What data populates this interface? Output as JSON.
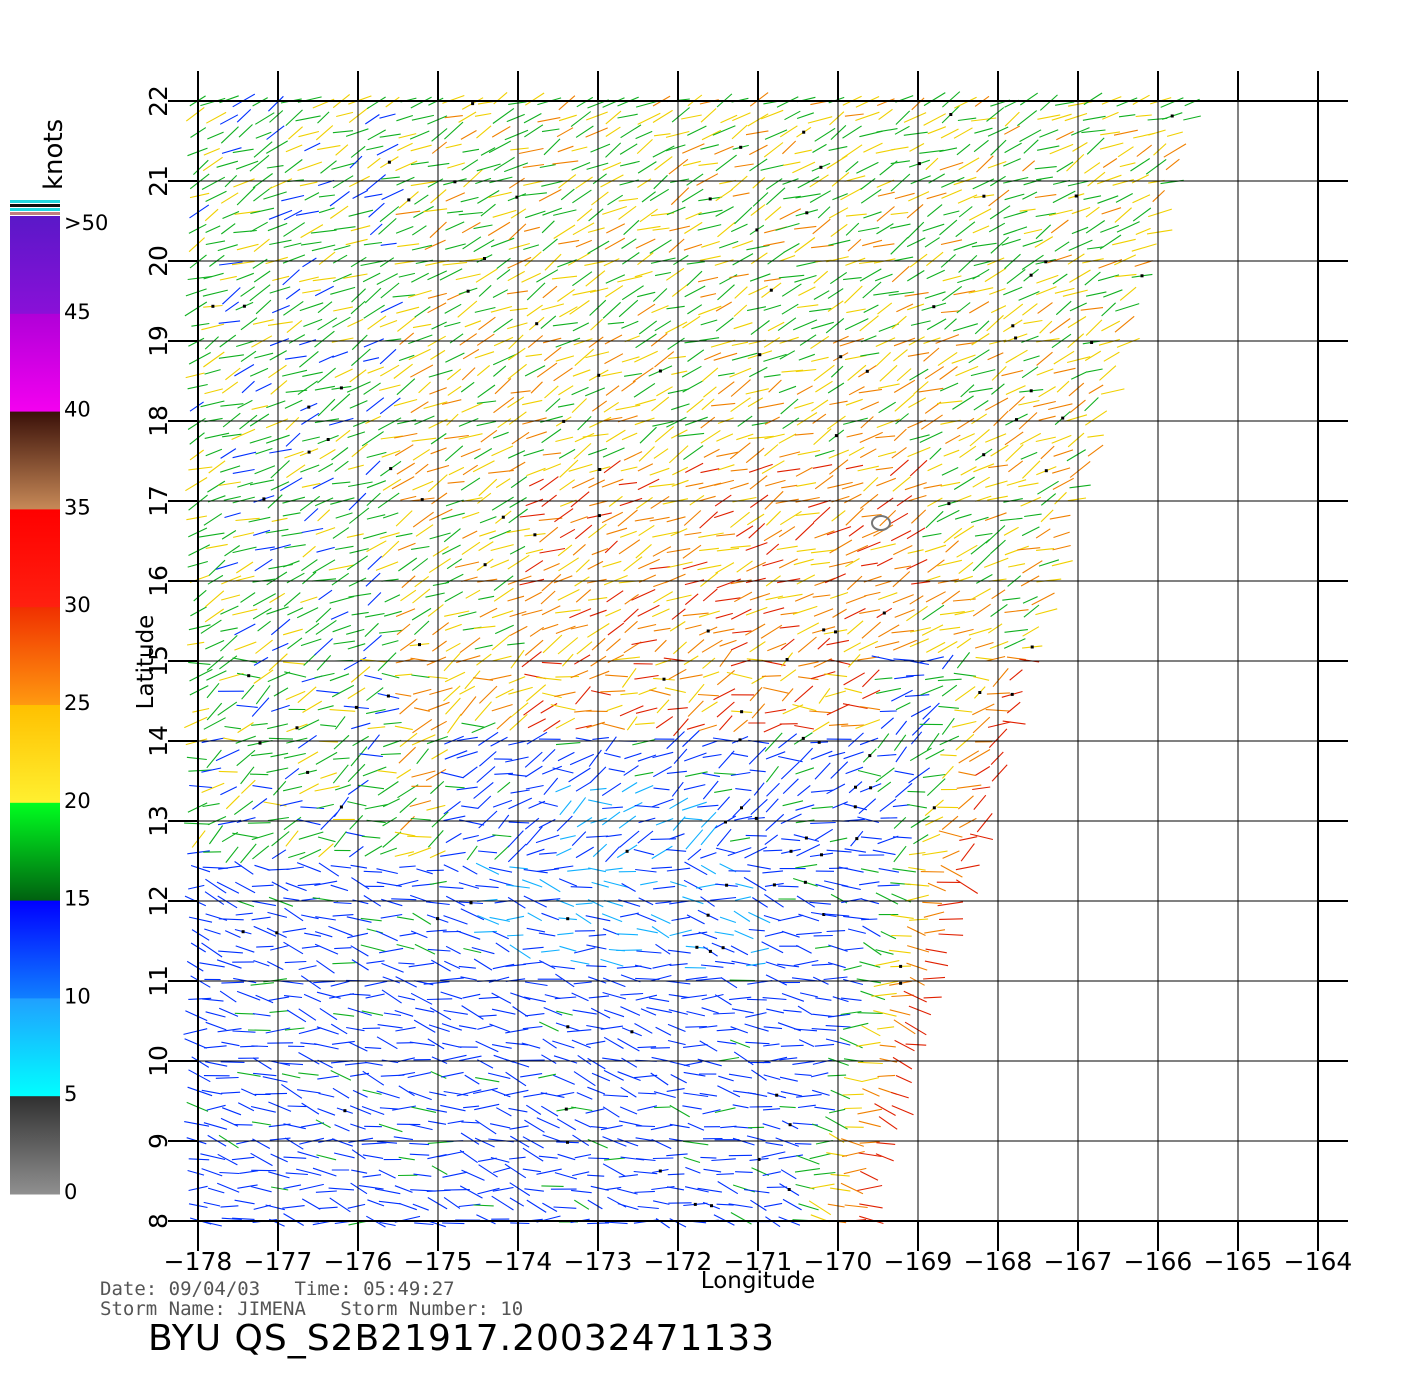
{
  "legend": {
    "unit_label": "knots",
    "labels": [
      ">50",
      "45",
      "40",
      "35",
      "30",
      "25",
      "20",
      "15",
      "10",
      "5",
      "0"
    ],
    "bands": [
      {
        "label": ">50",
        "colors": [
          "#5a18c8",
          "#8a10d8"
        ]
      },
      {
        "label": "45",
        "colors": [
          "#b000d8",
          "#f400f0"
        ]
      },
      {
        "label": "40",
        "colors": [
          "#3a1008",
          "#c88a58"
        ]
      },
      {
        "label": "35",
        "colors": [
          "#ff0000",
          "#ff2010"
        ]
      },
      {
        "label": "30",
        "colors": [
          "#f03000",
          "#ff9a10"
        ]
      },
      {
        "label": "25",
        "colors": [
          "#ffc000",
          "#fff030"
        ]
      },
      {
        "label": "20",
        "colors": [
          "#00ff20",
          "#006010"
        ]
      },
      {
        "label": "15",
        "colors": [
          "#0000ff",
          "#1080ff"
        ]
      },
      {
        "label": "10",
        "colors": [
          "#20a0ff",
          "#00ffff"
        ]
      },
      {
        "label": "5",
        "colors": [
          "#303030",
          "#909090"
        ]
      }
    ],
    "top_stripes": [
      "#20d8e0",
      "#101010",
      "#20d8e0",
      "#c08080"
    ]
  },
  "map": {
    "x_axis_label": "Longitude",
    "y_axis_label": "Latitude",
    "lon_ticks": [
      "−178",
      "−177",
      "−176",
      "−175",
      "−174",
      "−173",
      "−172",
      "−171",
      "−170",
      "−169",
      "−168",
      "−167",
      "−166",
      "−165",
      "−164"
    ],
    "lat_ticks": [
      "8",
      "9",
      "10",
      "11",
      "12",
      "13",
      "14",
      "15",
      "16",
      "17",
      "18",
      "19",
      "20",
      "21",
      "22"
    ],
    "lon_range": [
      -178,
      -164
    ],
    "lat_range": [
      8,
      22
    ],
    "swath_right_edge": [
      {
        "lat": 8,
        "lon": -169.6
      },
      {
        "lat": 22,
        "lon": -165.5
      }
    ],
    "wind_colors": {
      "low": "#0030ff",
      "cyan": "#10b0ff",
      "green": "#10b020",
      "yellow": "#f0d000",
      "orange": "#f08000",
      "red": "#e02000"
    }
  },
  "header": {
    "date_line": "Date: 09/04/03   Time: 05:49:27",
    "storm_line": "Storm Name: JIMENA   Storm Number: 10",
    "title": "BYU  QS_S2B21917.20032471133"
  }
}
